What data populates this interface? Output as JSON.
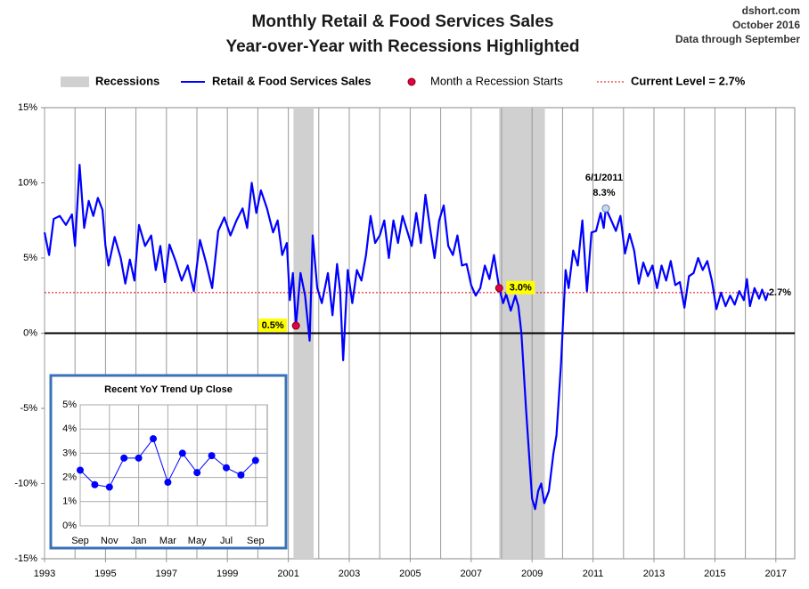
{
  "chart_data": [
    {
      "type": "line",
      "title": "Monthly Retail & Food Services Sales",
      "subtitle": "Year-over-Year with Recessions Highlighted",
      "notes": [
        "dshort.com",
        "October 2016",
        "Data through  September"
      ],
      "x": [
        1993.0,
        1993.15,
        1993.3,
        1993.5,
        1993.7,
        1993.9,
        1994.0,
        1994.15,
        1994.3,
        1994.45,
        1994.6,
        1994.75,
        1994.9,
        1995.0,
        1995.1,
        1995.3,
        1995.5,
        1995.65,
        1995.8,
        1995.95,
        1996.1,
        1996.3,
        1996.5,
        1996.65,
        1996.8,
        1996.95,
        1997.1,
        1997.3,
        1997.5,
        1997.7,
        1997.9,
        1998.1,
        1998.3,
        1998.5,
        1998.7,
        1998.9,
        1999.1,
        1999.3,
        1999.5,
        1999.65,
        1999.8,
        1999.95,
        2000.1,
        2000.3,
        2000.5,
        2000.65,
        2000.8,
        2000.95,
        2001.05,
        2001.15,
        2001.25,
        2001.4,
        2001.55,
        2001.7,
        2001.8,
        2001.95,
        2002.1,
        2002.3,
        2002.45,
        2002.6,
        2002.7,
        2002.8,
        2002.95,
        2003.1,
        2003.25,
        2003.4,
        2003.55,
        2003.7,
        2003.85,
        2004.0,
        2004.15,
        2004.3,
        2004.45,
        2004.6,
        2004.75,
        2004.9,
        2005.05,
        2005.2,
        2005.35,
        2005.5,
        2005.65,
        2005.8,
        2005.95,
        2006.1,
        2006.25,
        2006.4,
        2006.55,
        2006.7,
        2006.85,
        2007.0,
        2007.15,
        2007.3,
        2007.45,
        2007.6,
        2007.75,
        2007.92,
        2008.05,
        2008.15,
        2008.3,
        2008.45,
        2008.55,
        2008.65,
        2008.8,
        2008.95,
        2009.0,
        2009.1,
        2009.2,
        2009.3,
        2009.4,
        2009.55,
        2009.7,
        2009.8,
        2009.95,
        2010.1,
        2010.2,
        2010.35,
        2010.5,
        2010.65,
        2010.8,
        2010.95,
        2011.1,
        2011.25,
        2011.35,
        2011.42,
        2011.6,
        2011.75,
        2011.9,
        2012.05,
        2012.2,
        2012.35,
        2012.5,
        2012.65,
        2012.8,
        2012.95,
        2013.1,
        2013.25,
        2013.4,
        2013.55,
        2013.7,
        2013.85,
        2014.0,
        2014.15,
        2014.3,
        2014.45,
        2014.6,
        2014.75,
        2014.9,
        2015.05,
        2015.2,
        2015.35,
        2015.5,
        2015.65,
        2015.8,
        2015.95,
        2016.05,
        2016.15,
        2016.3,
        2016.45,
        2016.55,
        2016.67,
        2016.75
      ],
      "series": [
        {
          "name": "Retail & Food Services Sales",
          "color": "#0000ff",
          "values": [
            6.7,
            5.2,
            7.6,
            7.8,
            7.2,
            7.9,
            5.8,
            11.2,
            7.0,
            8.8,
            7.8,
            9.0,
            8.2,
            5.8,
            4.5,
            6.4,
            5.0,
            3.3,
            4.9,
            3.5,
            7.2,
            5.8,
            6.5,
            4.2,
            5.8,
            3.4,
            5.9,
            4.8,
            3.5,
            4.5,
            2.8,
            6.2,
            4.7,
            3.0,
            6.8,
            7.7,
            6.5,
            7.5,
            8.3,
            7.0,
            10.0,
            8.0,
            9.5,
            8.3,
            6.7,
            7.5,
            5.2,
            6.0,
            2.2,
            4.0,
            0.5,
            4.0,
            2.5,
            -0.5,
            6.5,
            3.0,
            2.0,
            4.0,
            1.2,
            4.6,
            2.8,
            -1.8,
            4.2,
            2.0,
            4.2,
            3.5,
            5.2,
            7.8,
            6.0,
            6.5,
            7.5,
            5.0,
            7.5,
            6.0,
            7.8,
            6.8,
            5.8,
            8.0,
            6.0,
            9.2,
            7.0,
            5.0,
            7.5,
            8.5,
            5.8,
            5.2,
            6.5,
            4.5,
            4.6,
            3.2,
            2.5,
            3.0,
            4.5,
            3.6,
            5.2,
            3.0,
            2.0,
            2.6,
            1.5,
            2.5,
            1.8,
            0.0,
            -5.0,
            -9.5,
            -11.0,
            -11.7,
            -10.5,
            -10.0,
            -11.3,
            -10.5,
            -8.0,
            -6.8,
            -2.0,
            4.2,
            3.0,
            5.5,
            4.5,
            7.5,
            2.8,
            6.7,
            6.8,
            8.0,
            7.0,
            8.3,
            7.5,
            6.8,
            7.8,
            5.3,
            6.6,
            5.5,
            3.3,
            4.7,
            3.8,
            4.5,
            3.0,
            4.5,
            3.5,
            4.8,
            3.2,
            3.4,
            1.7,
            3.8,
            4.0,
            5.0,
            4.2,
            4.8,
            3.5,
            1.6,
            2.7,
            1.8,
            2.5,
            1.9,
            2.8,
            2.2,
            3.6,
            1.8,
            3.0,
            2.3,
            2.9,
            2.2,
            2.7
          ]
        }
      ],
      "xlim": [
        1993,
        2017.62
      ],
      "xticks": [
        1993,
        1995,
        1997,
        1999,
        2001,
        2003,
        2005,
        2007,
        2009,
        2011,
        2013,
        2015,
        2017
      ],
      "xminor": [
        1994,
        1996,
        1998,
        2000,
        2002,
        2004,
        2006,
        2008,
        2010,
        2012,
        2014,
        2016
      ],
      "ylim": [
        -15,
        15
      ],
      "yticks": [
        {
          "value": -15,
          "label": "-15%"
        },
        {
          "value": -10,
          "label": "-10%"
        },
        {
          "value": -5,
          "label": "-5%"
        },
        {
          "value": 0,
          "label": "0%"
        },
        {
          "value": 5,
          "label": "5%"
        },
        {
          "value": 10,
          "label": "10%"
        },
        {
          "value": 15,
          "label": "15%"
        }
      ],
      "recessions": {
        "name": "Recessions",
        "color": "#d0d0d0",
        "spans": [
          [
            2001.17,
            2001.83
          ],
          [
            2007.92,
            2009.42
          ]
        ]
      },
      "recession_starts": {
        "name": "Month a Recession Starts",
        "color": "#e0004c",
        "x": [
          2001.25,
          2007.92
        ],
        "values": [
          0.5,
          3.0
        ],
        "value_labels": [
          "0.5%",
          "3.0%"
        ]
      },
      "current_level": {
        "name": "Current Level = 2.7%",
        "color": "#e00000",
        "value": 2.7,
        "value_label": "2.7%"
      },
      "annotation": {
        "text": "6/1/2011",
        "x": 2011.42,
        "value": 8.3,
        "value_label": "8.3%"
      }
    },
    {
      "type": "line",
      "title": "Recent  YoY Trend Up Close",
      "categories": [
        "Sep",
        null,
        "Nov",
        null,
        "Jan",
        null,
        "Mar",
        null,
        "May",
        null,
        "Jul",
        null,
        "Sep"
      ],
      "values": [
        2.3,
        1.7,
        1.6,
        2.8,
        2.8,
        3.6,
        1.8,
        3.0,
        2.2,
        2.9,
        2.4,
        2.1,
        2.7
      ],
      "color": "#0000ff",
      "ylim": [
        0,
        5
      ],
      "yticks": [
        {
          "value": 0,
          "label": "0%"
        },
        {
          "value": 1,
          "label": "1%"
        },
        {
          "value": 2,
          "label": "2%"
        },
        {
          "value": 3,
          "label": "3%"
        },
        {
          "value": 4,
          "label": "4%"
        },
        {
          "value": 5,
          "label": "5%"
        }
      ]
    }
  ]
}
